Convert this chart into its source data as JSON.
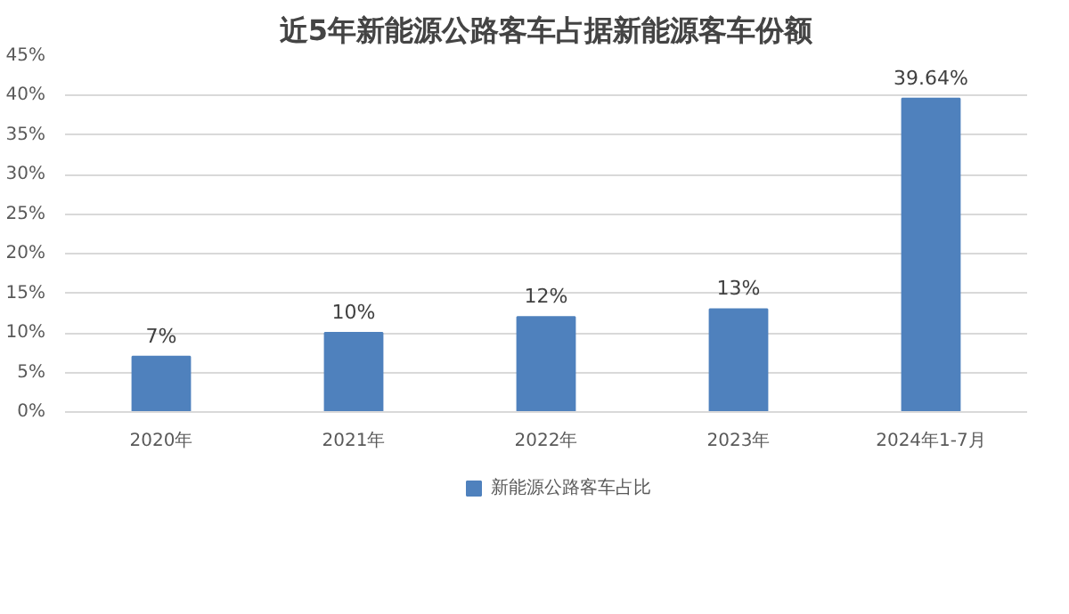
{
  "chart_data": {
    "type": "bar",
    "title": "近5年新能源公路客车占据新能源客车份额",
    "categories": [
      "2020年",
      "2021年",
      "2022年",
      "2023年",
      "2024年1-7月"
    ],
    "series": [
      {
        "name": "新能源公路客车占比",
        "color": "#4f81bd",
        "values": [
          7,
          10,
          12,
          13,
          39.64
        ],
        "value_labels": [
          "7%",
          "10%",
          "12%",
          "13%",
          "39.64%"
        ]
      }
    ],
    "ylim": [
      0,
      45
    ],
    "yticks": [
      {
        "value": 0,
        "label": "0%"
      },
      {
        "value": 5,
        "label": "5%"
      },
      {
        "value": 10,
        "label": "10%"
      },
      {
        "value": 15,
        "label": "15%"
      },
      {
        "value": 20,
        "label": "20%"
      },
      {
        "value": 25,
        "label": "25%"
      },
      {
        "value": 30,
        "label": "30%"
      },
      {
        "value": 35,
        "label": "35%"
      },
      {
        "value": 40,
        "label": "40%"
      },
      {
        "value": 45,
        "label": "45%"
      }
    ],
    "grid": "y",
    "legend": "bottom"
  }
}
